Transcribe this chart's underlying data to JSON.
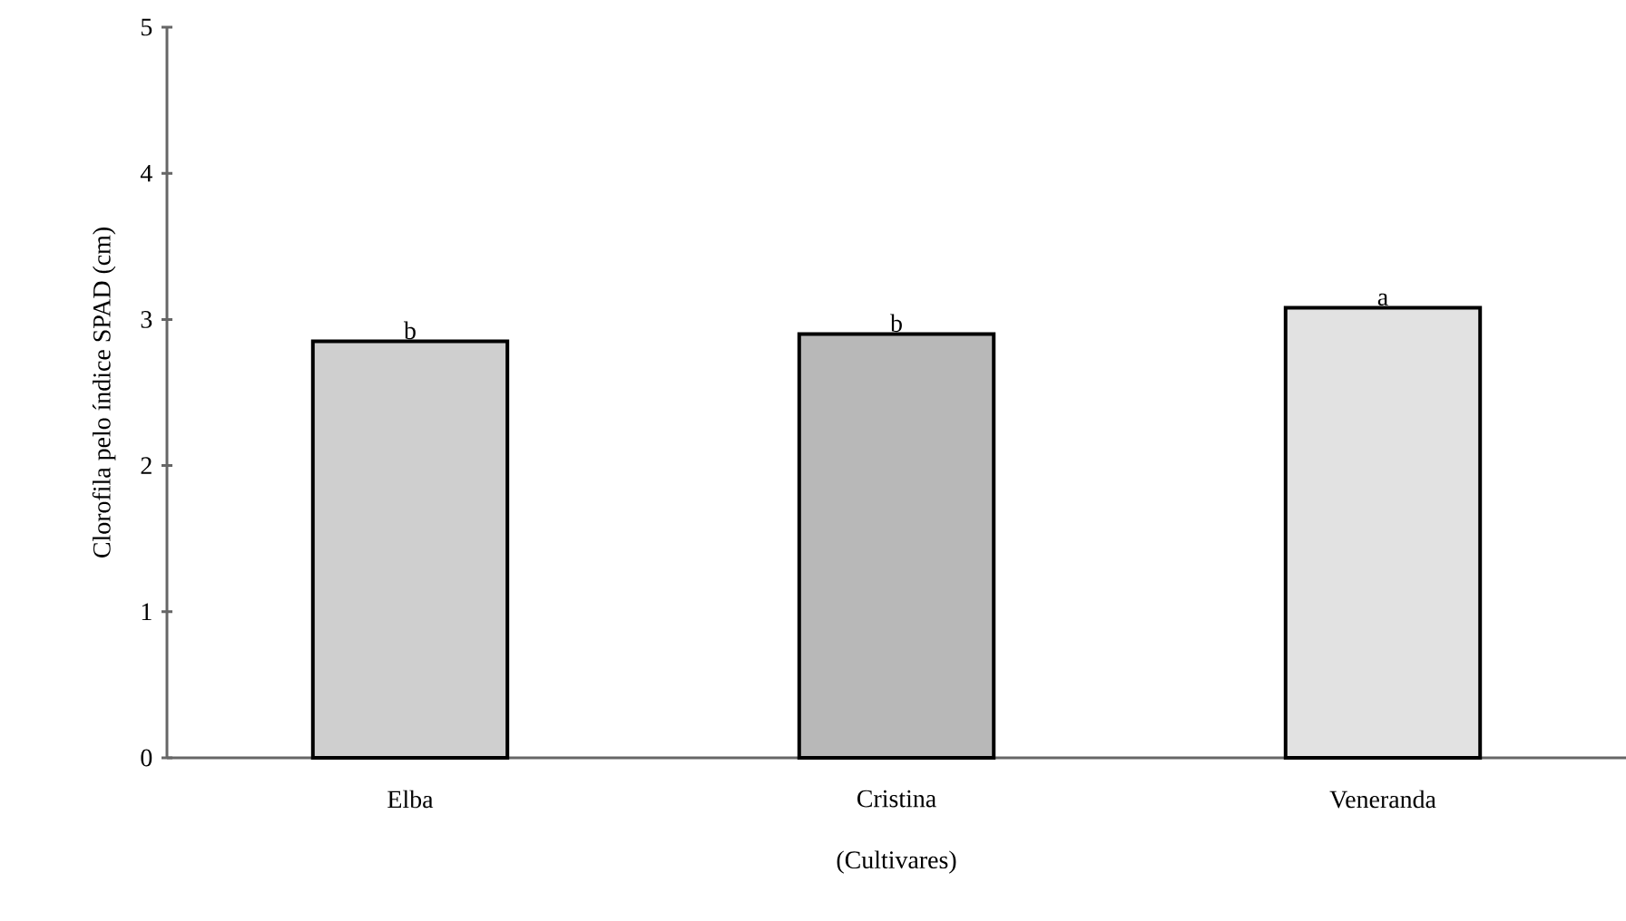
{
  "chart_data": {
    "type": "bar",
    "ylabel": "Clorofila pelo índice SPAD (cm)",
    "xlabel": "(Cultivares)",
    "categories": [
      "Elba",
      "Cristina",
      "Veneranda"
    ],
    "values": [
      2.85,
      2.9,
      3.08
    ],
    "colors": [
      "#cfcfcf",
      "#b8b8b8",
      "#e2e2e2"
    ],
    "ylim": [
      0,
      5
    ],
    "yticks": [
      0,
      1,
      2,
      3,
      4,
      5
    ],
    "grid": false,
    "annotations": [
      {
        "text": "b",
        "x": "Elba",
        "y": 2.85
      },
      {
        "text": "b",
        "x": "Cristina",
        "y": 2.9
      },
      {
        "text": "a",
        "x": "Veneranda",
        "y": 3.08
      }
    ]
  }
}
